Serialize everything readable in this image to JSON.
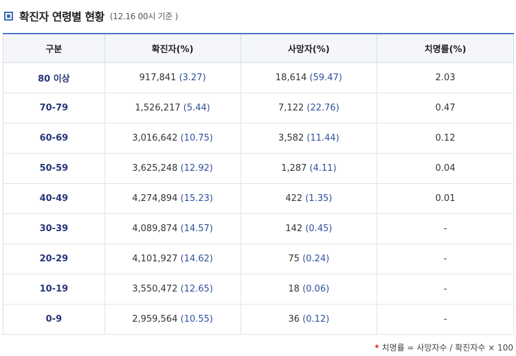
{
  "header": {
    "title": "확진자 연령별 현황",
    "subtitle": "(12.16 00시 기준 )"
  },
  "table": {
    "columns": [
      "구분",
      "확진자(%)",
      "사망자(%)",
      "치명률(%)"
    ],
    "rows": [
      {
        "age": "80 이상",
        "cases": "917,841",
        "cases_pct": "(3.27)",
        "deaths": "18,614",
        "deaths_pct": "(59.47)",
        "fatality": "2.03"
      },
      {
        "age": "70-79",
        "cases": "1,526,217",
        "cases_pct": "(5.44)",
        "deaths": "7,122",
        "deaths_pct": "(22.76)",
        "fatality": "0.47"
      },
      {
        "age": "60-69",
        "cases": "3,016,642",
        "cases_pct": "(10.75)",
        "deaths": "3,582",
        "deaths_pct": "(11.44)",
        "fatality": "0.12"
      },
      {
        "age": "50-59",
        "cases": "3,625,248",
        "cases_pct": "(12.92)",
        "deaths": "1,287",
        "deaths_pct": "(4.11)",
        "fatality": "0.04"
      },
      {
        "age": "40-49",
        "cases": "4,274,894",
        "cases_pct": "(15.23)",
        "deaths": "422",
        "deaths_pct": "(1.35)",
        "fatality": "0.01"
      },
      {
        "age": "30-39",
        "cases": "4,089,874",
        "cases_pct": "(14.57)",
        "deaths": "142",
        "deaths_pct": "(0.45)",
        "fatality": "-"
      },
      {
        "age": "20-29",
        "cases": "4,101,927",
        "cases_pct": "(14.62)",
        "deaths": "75",
        "deaths_pct": "(0.24)",
        "fatality": "-"
      },
      {
        "age": "10-19",
        "cases": "3,550,472",
        "cases_pct": "(12.65)",
        "deaths": "18",
        "deaths_pct": "(0.06)",
        "fatality": "-"
      },
      {
        "age": "0-9",
        "cases": "2,959,564",
        "cases_pct": "(10.55)",
        "deaths": "36",
        "deaths_pct": "(0.12)",
        "fatality": "-"
      }
    ]
  },
  "footnote": {
    "marker": "*",
    "text": "치명률 = 사망자수 / 확진자수 × 100"
  },
  "colors": {
    "accent": "#4a78c4",
    "age_label": "#26357a",
    "pct_text": "#2e4f9e",
    "footnote_marker": "#d9262b"
  }
}
